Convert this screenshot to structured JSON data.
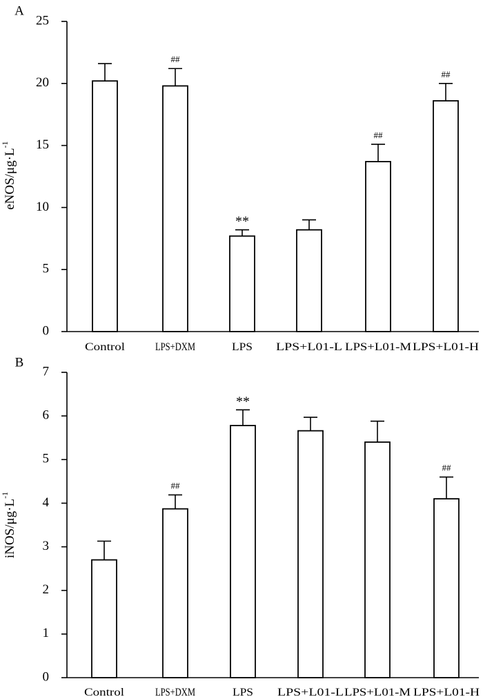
{
  "chart_data": [
    {
      "panel": "A",
      "type": "bar",
      "ylabel": "eNOS/μg·L",
      "ylabel_superscript": "-1",
      "ylim": [
        0,
        25
      ],
      "yticks": [
        0,
        5,
        10,
        15,
        20,
        25
      ],
      "categories": [
        "Control",
        "LPS+DXM",
        "LPS",
        "LPS+L01-L",
        "LPS+L01-M",
        "LPS+L01-H"
      ],
      "values": [
        20.2,
        19.8,
        7.7,
        8.2,
        13.7,
        18.6
      ],
      "errors": [
        1.4,
        1.4,
        0.5,
        0.8,
        1.4,
        1.4
      ],
      "annotations": [
        "",
        "##",
        "**",
        "",
        "##",
        "##"
      ]
    },
    {
      "panel": "B",
      "type": "bar",
      "ylabel": "iNOS/μg·L",
      "ylabel_superscript": "-1",
      "ylim": [
        0,
        7
      ],
      "yticks": [
        0,
        1,
        2,
        3,
        4,
        5,
        6,
        7
      ],
      "categories": [
        "Control",
        "LPS+DXM",
        "LPS",
        "LPS+L01-L",
        "LPS+L01-M",
        "LPS+L01-H"
      ],
      "values": [
        2.7,
        3.87,
        5.78,
        5.66,
        5.4,
        4.1
      ],
      "errors": [
        0.43,
        0.32,
        0.36,
        0.31,
        0.48,
        0.5
      ],
      "annotations": [
        "",
        "##",
        "**",
        "",
        "",
        "##"
      ]
    }
  ]
}
